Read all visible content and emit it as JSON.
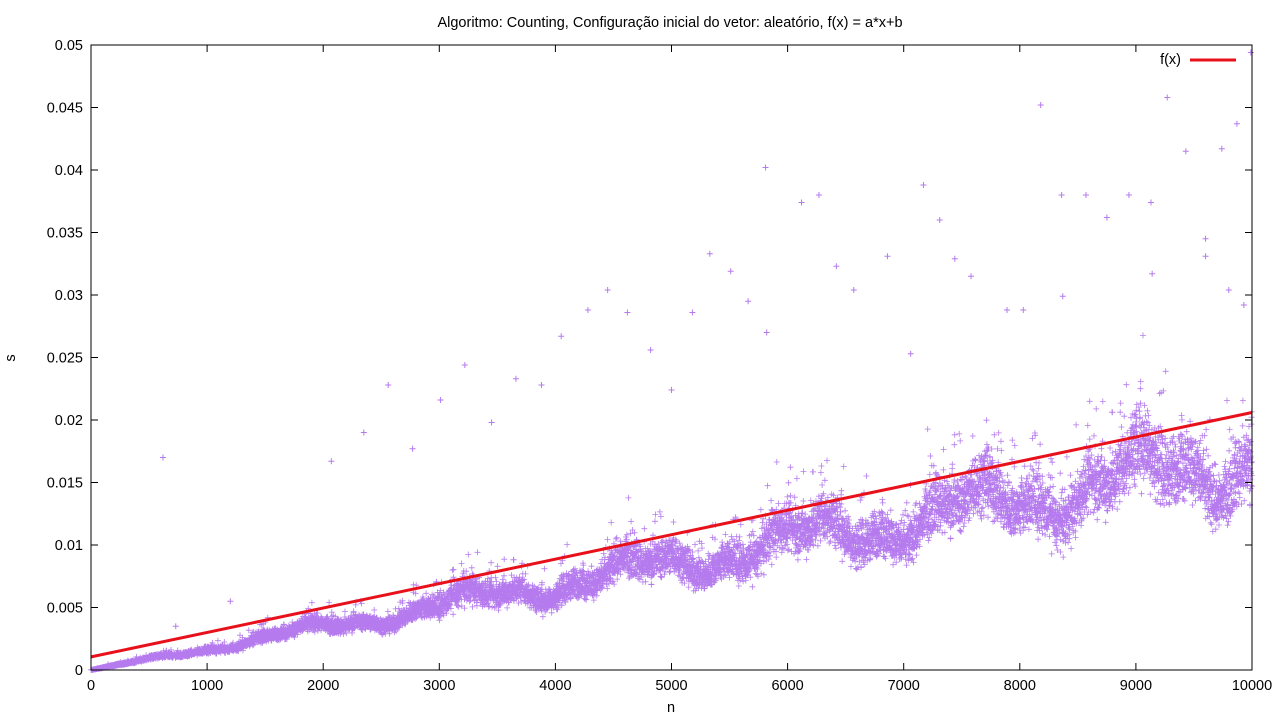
{
  "chart_data": {
    "type": "scatter",
    "title": "Algoritmo: Counting, Configuração inicial do vetor: aleatório, f(x) = a*x+b",
    "xlabel": "n",
    "ylabel": "s",
    "xlim": [
      0,
      10000
    ],
    "ylim": [
      0,
      0.05
    ],
    "xticks": [
      0,
      1000,
      2000,
      3000,
      4000,
      5000,
      6000,
      7000,
      8000,
      9000,
      10000
    ],
    "yticks": [
      0,
      0.005,
      0.01,
      0.015,
      0.02,
      0.025,
      0.03,
      0.035,
      0.04,
      0.045,
      0.05
    ],
    "xtick_labels": [
      "0",
      "1000",
      "2000",
      "3000",
      "4000",
      "5000",
      "6000",
      "7000",
      "8000",
      "9000",
      "10000"
    ],
    "ytick_labels": [
      "0",
      "0.005",
      "0.01",
      "0.015",
      "0.02",
      "0.025",
      "0.03",
      "0.035",
      "0.04",
      "0.045",
      "0.05"
    ],
    "grid": false,
    "legend_position": "top-right",
    "series": [
      {
        "name": "",
        "kind": "points",
        "marker": "+",
        "color": "#b57bee",
        "bulk_trend": {
          "slope_per_n": 1.7e-06,
          "intercept": 0.0,
          "spread_fraction": 0.25,
          "samples_per_n": 1
        },
        "outliers": [
          [
            620,
            0.017
          ],
          [
            730,
            0.0035
          ],
          [
            1200,
            0.0055
          ],
          [
            2070,
            0.0167
          ],
          [
            2350,
            0.019
          ],
          [
            2560,
            0.0228
          ],
          [
            2770,
            0.0177
          ],
          [
            3010,
            0.0216
          ],
          [
            3220,
            0.0244
          ],
          [
            3450,
            0.0198
          ],
          [
            3660,
            0.0233
          ],
          [
            3880,
            0.0228
          ],
          [
            4050,
            0.0267
          ],
          [
            4280,
            0.0288
          ],
          [
            4450,
            0.0304
          ],
          [
            4620,
            0.0286
          ],
          [
            4820,
            0.0256
          ],
          [
            5000,
            0.0224
          ],
          [
            5180,
            0.0286
          ],
          [
            5330,
            0.0333
          ],
          [
            5510,
            0.0319
          ],
          [
            5660,
            0.0295
          ],
          [
            5810,
            0.0402
          ],
          [
            5820,
            0.027
          ],
          [
            6120,
            0.0374
          ],
          [
            6270,
            0.038
          ],
          [
            6420,
            0.0323
          ],
          [
            6570,
            0.0304
          ],
          [
            6860,
            0.0331
          ],
          [
            7060,
            0.0253
          ],
          [
            7170,
            0.0388
          ],
          [
            7310,
            0.036
          ],
          [
            7440,
            0.0329
          ],
          [
            7580,
            0.0315
          ],
          [
            7890,
            0.0288
          ],
          [
            8030,
            0.0288
          ],
          [
            8180,
            0.0452
          ],
          [
            8360,
            0.038
          ],
          [
            8370,
            0.0299
          ],
          [
            8570,
            0.038
          ],
          [
            8750,
            0.0362
          ],
          [
            8940,
            0.038
          ],
          [
            9130,
            0.0374
          ],
          [
            9140,
            0.0317
          ],
          [
            9270,
            0.0458
          ],
          [
            9430,
            0.0415
          ],
          [
            9600,
            0.0345
          ],
          [
            9600,
            0.0331
          ],
          [
            9740,
            0.0417
          ],
          [
            9870,
            0.0437
          ],
          [
            9930,
            0.0292
          ],
          [
            9990,
            0.0494
          ],
          [
            9800,
            0.0304
          ]
        ]
      },
      {
        "name": "f(x)",
        "kind": "line",
        "color": "#e8111b",
        "points": [
          [
            0,
            0.00105
          ],
          [
            10000,
            0.0206
          ]
        ]
      }
    ]
  }
}
